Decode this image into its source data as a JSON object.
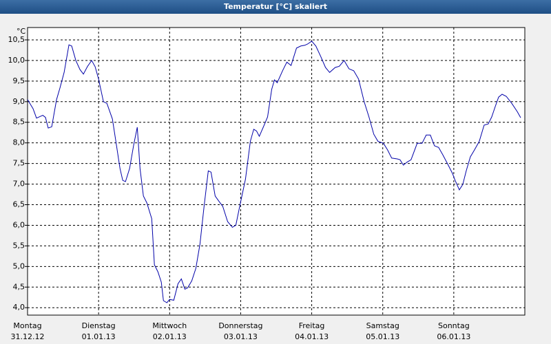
{
  "chart_data": {
    "type": "line",
    "title": "Temperatur [°C] skaliert",
    "y_unit": "°C",
    "xlim": [
      0,
      7
    ],
    "ylim": [
      3.82,
      10.8
    ],
    "grid": true,
    "xticks": [
      {
        "value": 0,
        "label": "Montag"
      },
      {
        "value": 1,
        "label": "Dienstag"
      },
      {
        "value": 2,
        "label": "Mittwoch"
      },
      {
        "value": 3,
        "label": "Donnerstag"
      },
      {
        "value": 4,
        "label": "Freitag"
      },
      {
        "value": 5,
        "label": "Samstag"
      },
      {
        "value": 6,
        "label": "Sonntag"
      }
    ],
    "xtick_dates": [
      "31.12.12",
      "01.01.13",
      "02.01.13",
      "03.01.13",
      "04.01.13",
      "05.01.13",
      "06.01.13"
    ],
    "yticks": [
      {
        "value": 4.0,
        "label": "4,0"
      },
      {
        "value": 4.5,
        "label": "4,5"
      },
      {
        "value": 5.0,
        "label": "5,0"
      },
      {
        "value": 5.5,
        "label": "5,5"
      },
      {
        "value": 6.0,
        "label": "6,0"
      },
      {
        "value": 6.5,
        "label": "6,5"
      },
      {
        "value": 7.0,
        "label": "7,0"
      },
      {
        "value": 7.5,
        "label": "7,5"
      },
      {
        "value": 8.0,
        "label": "8,0"
      },
      {
        "value": 8.5,
        "label": "8,5"
      },
      {
        "value": 9.0,
        "label": "9,0"
      },
      {
        "value": 9.5,
        "label": "9,5"
      },
      {
        "value": 10.0,
        "label": "10,0"
      },
      {
        "value": 10.5,
        "label": "10,5"
      }
    ],
    "x": [
      0,
      0.078,
      0.126,
      0.214,
      0.252,
      0.291,
      0.34,
      0.408,
      0.456,
      0.515,
      0.583,
      0.621,
      0.68,
      0.738,
      0.786,
      0.845,
      0.903,
      0.951,
      1.0,
      1.068,
      1.117,
      1.194,
      1.243,
      1.301,
      1.34,
      1.379,
      1.437,
      1.495,
      1.544,
      1.583,
      1.631,
      1.68,
      1.748,
      1.786,
      1.835,
      1.883,
      1.913,
      1.961,
      2.0,
      2.058,
      2.117,
      2.165,
      2.214,
      2.252,
      2.311,
      2.369,
      2.427,
      2.485,
      2.544,
      2.583,
      2.641,
      2.699,
      2.748,
      2.816,
      2.883,
      2.932,
      2.99,
      3.068,
      3.136,
      3.184,
      3.223,
      3.262,
      3.33,
      3.379,
      3.437,
      3.476,
      3.515,
      3.592,
      3.65,
      3.709,
      3.786,
      3.845,
      3.903,
      3.942,
      4.0,
      4.058,
      4.126,
      4.194,
      4.252,
      4.33,
      4.388,
      4.456,
      4.524,
      4.592,
      4.66,
      4.738,
      4.806,
      4.874,
      4.932,
      5.01,
      5.068,
      5.126,
      5.204,
      5.243,
      5.291,
      5.34,
      5.398,
      5.485,
      5.553,
      5.612,
      5.67,
      5.728,
      5.786,
      5.845,
      5.922,
      5.981,
      6.019,
      6.078,
      6.126,
      6.175,
      6.233,
      6.291,
      6.359,
      6.427,
      6.485,
      6.534,
      6.583,
      6.631,
      6.68,
      6.738,
      6.816,
      6.893,
      6.942
    ],
    "series": [
      {
        "color": "#0000a8",
        "values": [
          9.05,
          8.83,
          8.6,
          8.67,
          8.62,
          8.36,
          8.39,
          9.05,
          9.33,
          9.71,
          10.38,
          10.35,
          10.0,
          9.78,
          9.67,
          9.86,
          10.0,
          9.85,
          9.55,
          9.0,
          8.96,
          8.58,
          8.04,
          7.38,
          7.09,
          7.06,
          7.38,
          7.96,
          8.38,
          7.38,
          6.71,
          6.54,
          6.16,
          5.04,
          4.87,
          4.62,
          4.17,
          4.12,
          4.2,
          4.18,
          4.58,
          4.7,
          4.45,
          4.48,
          4.65,
          4.95,
          5.54,
          6.46,
          7.32,
          7.29,
          6.71,
          6.57,
          6.46,
          6.09,
          5.95,
          6.0,
          6.49,
          7.12,
          8.04,
          8.33,
          8.29,
          8.16,
          8.43,
          8.63,
          9.3,
          9.53,
          9.46,
          9.76,
          9.96,
          9.88,
          10.3,
          10.35,
          10.37,
          10.4,
          10.47,
          10.35,
          10.1,
          9.83,
          9.71,
          9.83,
          9.86,
          10.0,
          9.8,
          9.75,
          9.55,
          9.0,
          8.63,
          8.21,
          8.04,
          7.99,
          7.83,
          7.63,
          7.61,
          7.59,
          7.46,
          7.53,
          7.59,
          7.99,
          7.99,
          8.19,
          8.19,
          7.93,
          7.89,
          7.71,
          7.46,
          7.26,
          7.09,
          6.86,
          6.99,
          7.32,
          7.66,
          7.83,
          8.04,
          8.43,
          8.46,
          8.63,
          8.88,
          9.11,
          9.18,
          9.13,
          8.96,
          8.76,
          8.61
        ]
      }
    ]
  }
}
